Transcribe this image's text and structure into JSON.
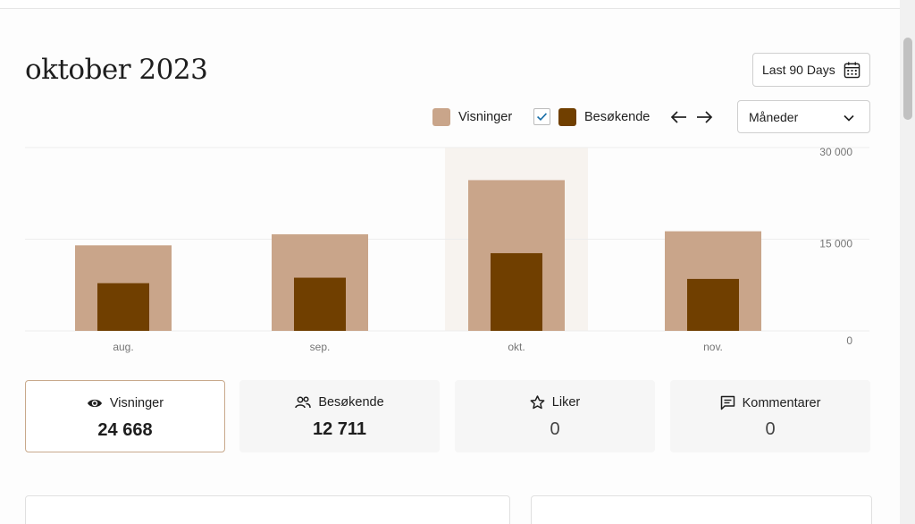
{
  "header": {
    "title": "oktober 2023"
  },
  "range_button": {
    "label": "Last 90 Days",
    "icon": "calendar-icon"
  },
  "legend": {
    "views": {
      "label": "Visninger",
      "color": "#c9a58a"
    },
    "visitors": {
      "label": "Besøkende",
      "color": "#703f00",
      "checked": true
    }
  },
  "nav": {
    "prev_icon": "arrow-left-icon",
    "next_icon": "arrow-right-icon"
  },
  "period_select": {
    "value": "Måneder"
  },
  "chart_data": {
    "type": "bar",
    "categories": [
      "aug.",
      "sep.",
      "okt.",
      "nov."
    ],
    "series": [
      {
        "name": "Visninger",
        "color": "#c9a58a",
        "values": [
          14000,
          15800,
          24668,
          16300
        ]
      },
      {
        "name": "Besøkende",
        "color": "#703f00",
        "values": [
          7800,
          8700,
          12711,
          8500
        ]
      }
    ],
    "ylim": [
      0,
      30000
    ],
    "yticks": [
      "30 000",
      "15 000",
      "0"
    ],
    "highlighted_category": "okt.",
    "grid": true,
    "legend_placement": "top-right"
  },
  "stats": [
    {
      "label": "Visninger",
      "value": "24 668",
      "icon": "eye-icon",
      "selected": true
    },
    {
      "label": "Besøkende",
      "value": "12 711",
      "icon": "people-icon",
      "selected": false
    },
    {
      "label": "Liker",
      "value": "0",
      "icon": "star-icon",
      "selected": false
    },
    {
      "label": "Kommentarer",
      "value": "0",
      "icon": "comment-icon",
      "selected": false
    }
  ]
}
